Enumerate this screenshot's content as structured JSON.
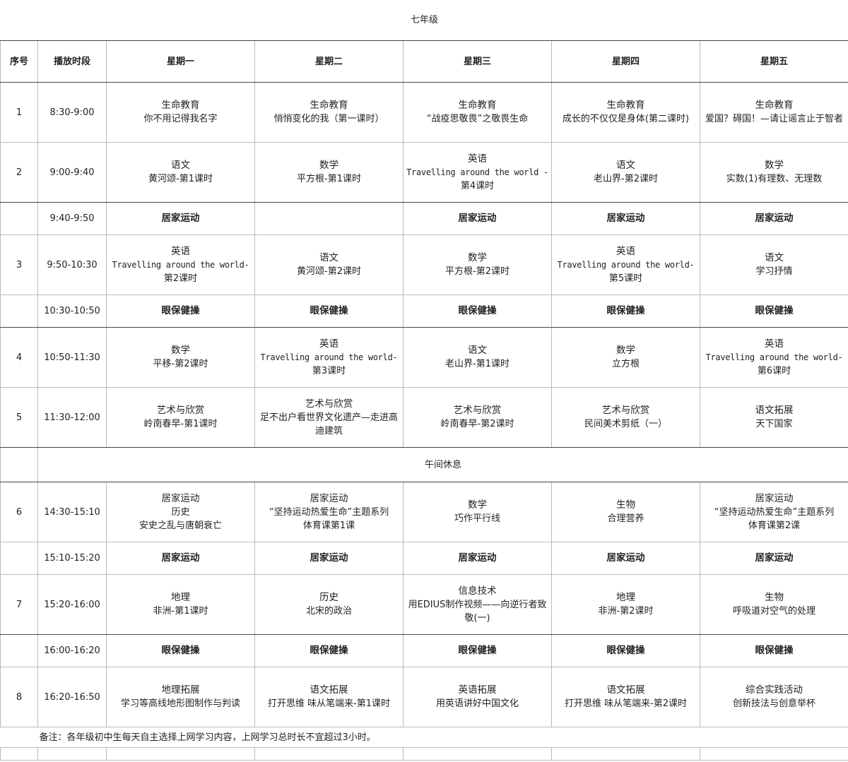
{
  "title": "七年级",
  "headers": [
    "序号",
    "播放时段",
    "星期一",
    "星期二",
    "星期三",
    "星期四",
    "星期五"
  ],
  "rows": [
    {
      "type": "class",
      "no": "1",
      "time": "8:30-9:00",
      "cells": [
        [
          "生命教育",
          "你不用记得我名字"
        ],
        [
          "生命教育",
          "悄悄变化的我（第一课时）"
        ],
        [
          "生命教育",
          "“战疫思敬畏”之敬畏生命"
        ],
        [
          "生命教育",
          "成长的不仅仅是身体(第二课时)"
        ],
        [
          "生命教育",
          "爱国？碍国！—请让谣言止于智者"
        ]
      ]
    },
    {
      "type": "class",
      "no": "2",
      "time": "9:00-9:40",
      "cells": [
        [
          "语文",
          "黄河颂-第1课时"
        ],
        [
          "数学",
          "平方根-第1课时"
        ],
        [
          "英语",
          "Travelling around the world -",
          "第4课时"
        ],
        [
          "语文",
          "老山界-第2课时"
        ],
        [
          "数学",
          "实数(1)有理数、无理数"
        ]
      ]
    },
    {
      "type": "break",
      "no": "",
      "time": "9:40-9:50",
      "cells": [
        [
          "居家运动"
        ],
        [
          ""
        ],
        [
          "居家运动"
        ],
        [
          "居家运动"
        ],
        [
          "居家运动"
        ]
      ]
    },
    {
      "type": "class",
      "no": "3",
      "time": "9:50-10:30",
      "cells": [
        [
          "英语",
          "Travelling around the world-",
          "第2课时"
        ],
        [
          "语文",
          "黄河颂-第2课时"
        ],
        [
          "数学",
          "平方根-第2课时"
        ],
        [
          "英语",
          "Travelling around the world-",
          "第5课时"
        ],
        [
          "语文",
          "学习抒情"
        ]
      ]
    },
    {
      "type": "break",
      "no": "",
      "time": "10:30-10:50",
      "cells": [
        [
          "眼保健操"
        ],
        [
          "眼保健操"
        ],
        [
          "眼保健操"
        ],
        [
          "眼保健操"
        ],
        [
          "眼保健操"
        ]
      ]
    },
    {
      "type": "class",
      "no": "4",
      "time": "10:50-11:30",
      "cells": [
        [
          "数学",
          "平移-第2课时"
        ],
        [
          "英语",
          "Travelling around the world-",
          "第3课时"
        ],
        [
          "语文",
          "老山界-第1课时"
        ],
        [
          "数学",
          "立方根"
        ],
        [
          "英语",
          "Travelling around the world-",
          "第6课时"
        ]
      ]
    },
    {
      "type": "class",
      "no": "5",
      "time": "11:30-12:00",
      "cells": [
        [
          "艺术与欣赏",
          "岭南春早-第1课时"
        ],
        [
          "艺术与欣赏",
          "足不出户看世界文化遗产—走进高迪建筑"
        ],
        [
          "艺术与欣赏",
          "岭南春早-第2课时"
        ],
        [
          "艺术与欣赏",
          "民间美术剪纸（一）"
        ],
        [
          "语文拓展",
          "天下国家"
        ]
      ]
    },
    {
      "type": "lunch",
      "label": "午间休息"
    },
    {
      "type": "class",
      "no": "6",
      "time": "14:30-15:10",
      "cells": [
        [
          "居家运动",
          "历史",
          "安史之乱与唐朝衰亡"
        ],
        [
          "居家运动",
          "“坚持运动热爱生命”主题系列",
          "体育课第1课"
        ],
        [
          "数学",
          "巧作平行线"
        ],
        [
          "生物",
          "合理营养"
        ],
        [
          "居家运动",
          "“坚持运动热爱生命”主题系列",
          "体育课第2课"
        ]
      ]
    },
    {
      "type": "break",
      "no": "",
      "time": "15:10-15:20",
      "cells": [
        [
          "居家运动"
        ],
        [
          "居家运动"
        ],
        [
          "居家运动"
        ],
        [
          "居家运动"
        ],
        [
          "居家运动"
        ]
      ]
    },
    {
      "type": "class",
      "no": "7",
      "time": "15:20-16:00",
      "cells": [
        [
          "地理",
          "非洲-第1课时"
        ],
        [
          "历史",
          "北宋的政治"
        ],
        [
          "信息技术",
          "用EDIUS制作视频——向逆行者致敬(一)"
        ],
        [
          "地理",
          "非洲-第2课时"
        ],
        [
          "生物",
          "呼吸道对空气的处理"
        ]
      ]
    },
    {
      "type": "break",
      "no": "",
      "time": "16:00-16:20",
      "cells": [
        [
          "眼保健操"
        ],
        [
          "眼保健操"
        ],
        [
          "眼保健操"
        ],
        [
          "眼保健操"
        ],
        [
          "眼保健操"
        ]
      ]
    },
    {
      "type": "class",
      "no": "8",
      "time": "16:20-16:50",
      "cells": [
        [
          "地理拓展",
          "学习等高线地形图制作与判读"
        ],
        [
          "语文拓展",
          "打开思维 味从笔端来-第1课时"
        ],
        [
          "英语拓展",
          "用英语讲好中国文化"
        ],
        [
          "语文拓展",
          "打开思维 味从笔端来-第2课时"
        ],
        [
          "综合实践活动",
          "创新技法与创意举杯"
        ]
      ]
    }
  ],
  "note": "备注：各年级初中生每天自主选择上网学习内容，上网学习总时长不宜超过3小时。"
}
